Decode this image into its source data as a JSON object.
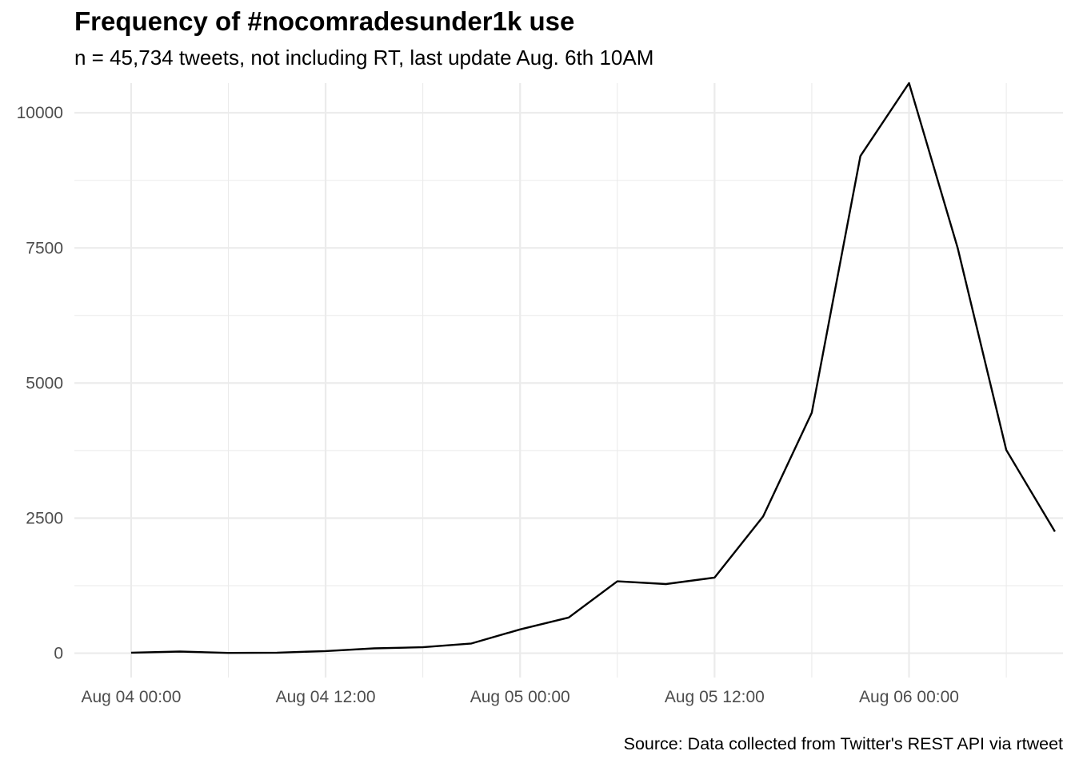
{
  "chart_data": {
    "type": "line",
    "title": "Frequency of #nocomradesunder1k use",
    "subtitle": "n = 45,734 tweets, not including RT, last update Aug. 6th 10AM",
    "caption": "Source: Data collected from Twitter's REST API via rtweet",
    "xlabel": "",
    "ylabel": "",
    "x_unit": "hours",
    "x_start": "Aug 04 00:00",
    "xlim": [
      -3.5,
      57.5
    ],
    "ylim": [
      -450,
      10550
    ],
    "x_ticks": [
      {
        "value": 0,
        "label": "Aug 04 00:00"
      },
      {
        "value": 12,
        "label": "Aug 04 12:00"
      },
      {
        "value": 24,
        "label": "Aug 05 00:00"
      },
      {
        "value": 36,
        "label": "Aug 05 12:00"
      },
      {
        "value": 48,
        "label": "Aug 06 00:00"
      }
    ],
    "x_minor_ticks": [
      6,
      18,
      30,
      42,
      54
    ],
    "y_ticks": [
      {
        "value": 0,
        "label": "0"
      },
      {
        "value": 2500,
        "label": "2500"
      },
      {
        "value": 5000,
        "label": "5000"
      },
      {
        "value": 7500,
        "label": "7500"
      },
      {
        "value": 10000,
        "label": "10000"
      }
    ],
    "y_minor_ticks": [
      1250,
      3750,
      6250,
      8750
    ],
    "grid": true,
    "line_color": "#000000",
    "grid_color": "#ebebeb",
    "series": [
      {
        "name": "",
        "x": [
          0,
          3,
          6,
          9,
          12,
          15,
          18,
          21,
          24,
          27,
          30,
          33,
          36,
          39,
          42,
          45,
          48,
          51,
          54,
          57
        ],
        "values": [
          10,
          30,
          5,
          10,
          40,
          90,
          110,
          180,
          440,
          660,
          1330,
          1280,
          1400,
          2530,
          4450,
          9200,
          10550,
          7500,
          3760,
          2250
        ]
      }
    ]
  }
}
